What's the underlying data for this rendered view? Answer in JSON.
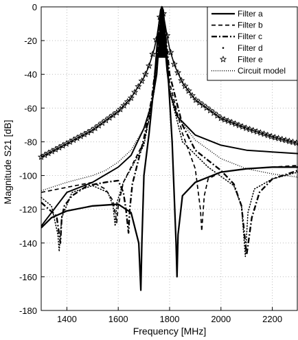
{
  "chart_data": {
    "type": "line",
    "title": "",
    "xlabel": "Frequency [MHz]",
    "ylabel": "Magnitude S21 [dB]",
    "xlim": [
      1300,
      2300
    ],
    "ylim": [
      -180,
      0
    ],
    "xticks": [
      1400,
      1600,
      1800,
      2000,
      2200
    ],
    "yticks": [
      0,
      -20,
      -40,
      -60,
      -80,
      -100,
      -120,
      -140,
      -160,
      -180
    ],
    "xtick_labels": [
      "1400",
      "1600",
      "1800",
      "2000",
      "2200"
    ],
    "ytick_labels": [
      "0",
      "-20",
      "-40",
      "-60",
      "-80",
      "-100",
      "-120",
      "-140",
      "-160",
      "-180"
    ],
    "grid": true,
    "legend_position": "top-right",
    "series": [
      {
        "name": "Filter a",
        "style": "solid-thick",
        "x": [
          1300,
          1340,
          1400,
          1500,
          1600,
          1650,
          1680,
          1688,
          1692,
          1700,
          1720,
          1740,
          1755,
          1765,
          1770,
          1775,
          1790,
          1810,
          1825,
          1829,
          1833,
          1850,
          1900,
          2000,
          2100,
          2200,
          2300
        ],
        "y": [
          -131,
          -125,
          -121,
          -118,
          -117,
          -122,
          -140,
          -168,
          -140,
          -100,
          -75,
          -45,
          -15,
          -2,
          0,
          -2,
          -30,
          -80,
          -140,
          -160,
          -135,
          -112,
          -104,
          -98,
          -96,
          -95,
          -95
        ]
      },
      {
        "name": "Filter a",
        "style": "solid",
        "x": [
          1300,
          1400,
          1500,
          1600,
          1650,
          1700,
          1730,
          1750,
          1760,
          1770,
          1780,
          1790,
          1800,
          1830,
          1900,
          2000,
          2100,
          2200,
          2300
        ],
        "y": [
          -130,
          -110,
          -104,
          -95,
          -88,
          -72,
          -58,
          -40,
          -20,
          0,
          -20,
          -38,
          -50,
          -65,
          -76,
          -82,
          -85,
          -86,
          -87
        ]
      },
      {
        "name": "Filter b",
        "x": [
          1300,
          1400,
          1500,
          1550,
          1580,
          1594,
          1600,
          1620,
          1650,
          1700,
          1730,
          1750,
          1760,
          1770,
          1780,
          1800,
          1850,
          1900,
          1920,
          1925,
          1935,
          1950,
          2000,
          2100,
          2200,
          2300
        ],
        "y": [
          -110,
          -107,
          -104,
          -108,
          -115,
          -128,
          -118,
          -104,
          -95,
          -80,
          -60,
          -35,
          -15,
          0,
          -15,
          -45,
          -75,
          -96,
          -120,
          -133,
          -112,
          -102,
          -98,
          -96,
          -95,
          -94
        ]
      },
      {
        "name": "Filter c",
        "x": [
          1300,
          1360,
          1375,
          1380,
          1390,
          1420,
          1480,
          1550,
          1600,
          1620,
          1630,
          1640,
          1645,
          1655,
          1700,
          1730,
          1750,
          1760,
          1770,
          1780,
          1800,
          1850,
          1900,
          2000,
          2050,
          2080,
          2100,
          2120,
          2150,
          2200,
          2300
        ],
        "y": [
          -116,
          -124,
          -140,
          -125,
          -118,
          -112,
          -106,
          -104,
          -103,
          -110,
          -120,
          -134,
          -120,
          -105,
          -78,
          -55,
          -30,
          -10,
          0,
          -10,
          -40,
          -70,
          -85,
          -97,
          -105,
          -118,
          -147,
          -125,
          -110,
          -102,
          -97
        ]
      },
      {
        "name": "Filter d",
        "x": [
          1300,
          1340,
          1365,
          1370,
          1380,
          1420,
          1500,
          1560,
          1580,
          1588,
          1595,
          1620,
          1700,
          1740,
          1760,
          1770,
          1780,
          1800,
          1850,
          1950,
          2050,
          2080,
          2095,
          2105,
          2130,
          2200,
          2300
        ],
        "y": [
          -113,
          -118,
          -135,
          -145,
          -125,
          -110,
          -106,
          -110,
          -118,
          -130,
          -116,
          -104,
          -82,
          -50,
          -18,
          0,
          -18,
          -50,
          -80,
          -95,
          -106,
          -118,
          -148,
          -122,
          -108,
          -102,
          -98
        ]
      },
      {
        "name": "Filter e",
        "x": [
          1300,
          1400,
          1500,
          1600,
          1650,
          1700,
          1720,
          1740,
          1750,
          1760,
          1765,
          1770,
          1775,
          1780,
          1790,
          1800,
          1820,
          1850,
          1900,
          2000,
          2100,
          2200,
          2300
        ],
        "y": [
          -89,
          -81,
          -73,
          -62,
          -54,
          -42,
          -35,
          -25,
          -18,
          -8,
          -3,
          0,
          -3,
          -8,
          -17,
          -25,
          -35,
          -45,
          -55,
          -66,
          -72,
          -77,
          -81
        ]
      },
      {
        "name": "Circuit model",
        "x": [
          1300,
          1400,
          1500,
          1550,
          1600,
          1650,
          1700,
          1730,
          1750,
          1760,
          1770,
          1780,
          1790,
          1800,
          1830,
          1900,
          2000,
          2100,
          2200,
          2300
        ],
        "y": [
          -109,
          -104,
          -100,
          -97,
          -92,
          -85,
          -72,
          -56,
          -38,
          -18,
          0,
          -18,
          -38,
          -48,
          -65,
          -79,
          -90,
          -96,
          -99,
          -101
        ]
      }
    ]
  },
  "legend": {
    "items": [
      {
        "label": "Filter a",
        "style": "solid"
      },
      {
        "label": "Filter b",
        "style": "dashed"
      },
      {
        "label": "Filter c",
        "style": "dashdot"
      },
      {
        "label": "Filter d",
        "style": "dot"
      },
      {
        "label": "Filter e",
        "style": "star"
      },
      {
        "label": "Circuit model",
        "style": "dotted"
      }
    ]
  },
  "colors": {
    "line": "#000000",
    "grid": "#bbbbbb",
    "background": "#ffffff"
  }
}
